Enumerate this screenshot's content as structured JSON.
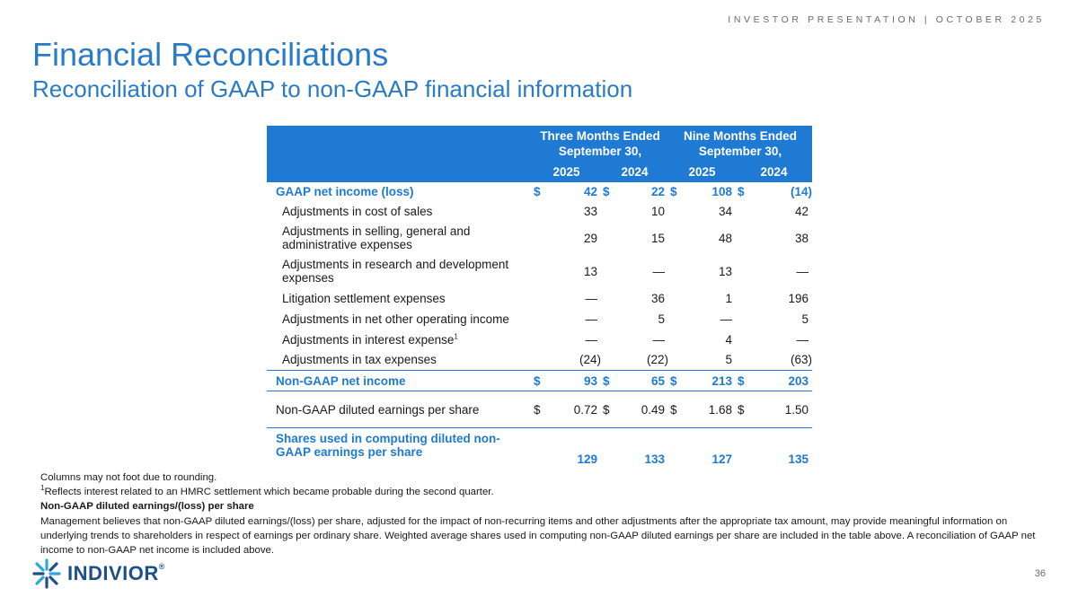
{
  "header": {
    "tag": "INVESTOR PRESENTATION | OCTOBER 2025",
    "title": "Financial Reconciliations",
    "subtitle": "Reconciliation of GAAP to non-GAAP financial information"
  },
  "table": {
    "period_three": [
      "Three Months Ended",
      "September 30,"
    ],
    "period_nine": [
      "Nine Months Ended",
      "September 30,"
    ],
    "years": [
      "2025",
      "2024",
      "2025",
      "2024"
    ],
    "rows": [
      {
        "label": "GAAP net income (loss)",
        "dollar": true,
        "values": [
          "42",
          "22",
          "108",
          "(14)"
        ]
      },
      {
        "label": "Adjustments in cost of sales",
        "values": [
          "33",
          "10",
          "34",
          "42"
        ]
      },
      {
        "label": "Adjustments in selling, general and administrative expenses",
        "values": [
          "29",
          "15",
          "48",
          "38"
        ]
      },
      {
        "label": "Adjustments in research and development expenses",
        "values": [
          "13",
          "—",
          "13",
          "—"
        ]
      },
      {
        "label": "Litigation settlement expenses",
        "values": [
          "—",
          "36",
          "1",
          "196"
        ]
      },
      {
        "label": "Adjustments in net other operating income",
        "values": [
          "—",
          "5",
          "—",
          "5"
        ]
      },
      {
        "label": "Adjustments in interest expense",
        "sup": "1",
        "values": [
          "—",
          "—",
          "4",
          "—"
        ]
      },
      {
        "label": "Adjustments in tax expenses",
        "values": [
          "(24)",
          "(22)",
          "5",
          "(63)"
        ]
      },
      {
        "label": "Non-GAAP net income",
        "dollar": true,
        "values": [
          "93",
          "65",
          "213",
          "203"
        ]
      },
      {
        "label": "Non-GAAP diluted earnings per share",
        "dollar": true,
        "values": [
          "0.72",
          "0.49",
          "1.68",
          "1.50"
        ]
      },
      {
        "label": "Shares used in computing diluted non-GAAP earnings per share",
        "values": [
          "129",
          "133",
          "127",
          "135"
        ]
      }
    ],
    "currency_symbol": "$"
  },
  "notes": {
    "rounding": "Columns may not foot due to rounding.",
    "footnote_marker": "1",
    "footnote": "Reflects interest related to an HMRC settlement which became probable during the second quarter.",
    "eps_heading": "Non-GAAP diluted earnings/(loss) per share",
    "eps_body": "Management believes that non-GAAP diluted earnings/(loss) per share, adjusted for the impact of non-recurring items and other adjustments after the appropriate tax amount, may provide meaningful information on underlying trends to shareholders in respect of earnings per ordinary share. Weighted average shares used in computing non-GAAP diluted earnings per share are included in the table above. A reconciliation of GAAP net income to non-GAAP net income is included above."
  },
  "footer": {
    "logo_text": "INDIVIOR",
    "logo_mark": "®",
    "page_number": "36"
  },
  "colors": {
    "accent": "#1e7ad3",
    "title": "#2a7bc6",
    "logo": "#1d4f8a"
  }
}
